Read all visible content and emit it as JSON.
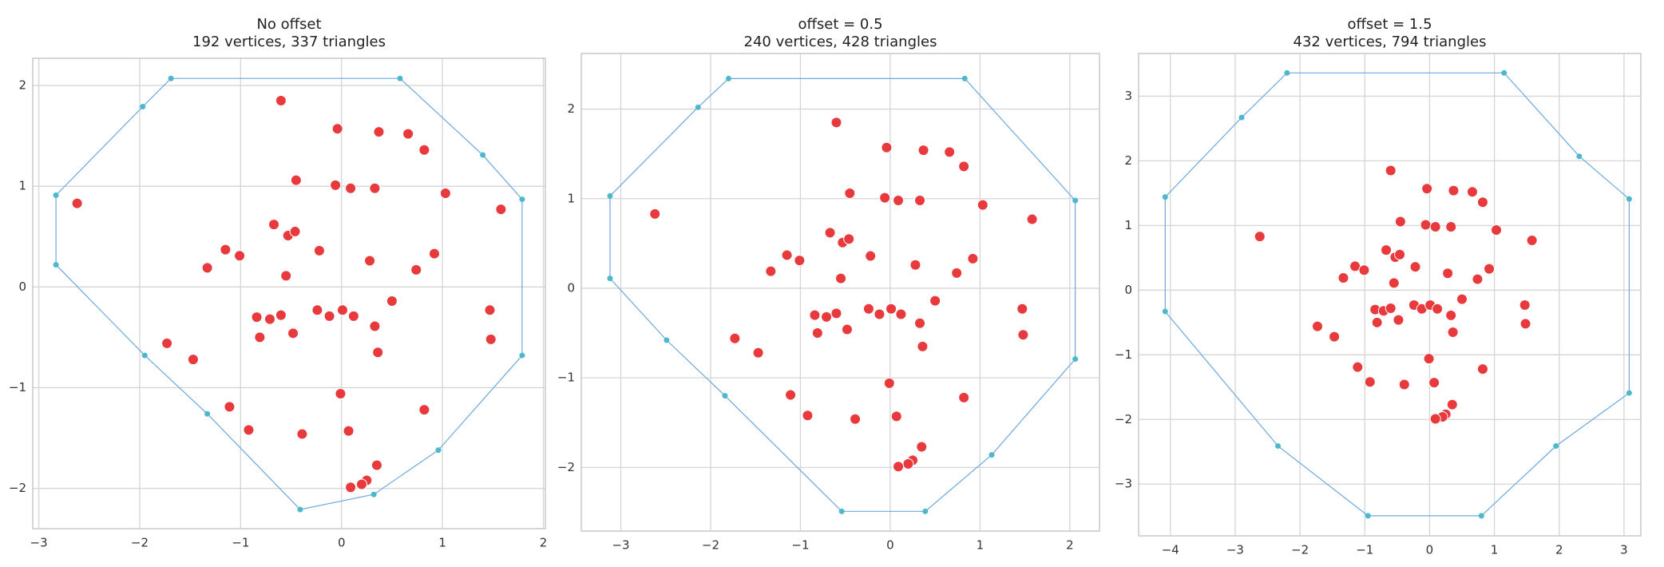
{
  "chart_data": [
    {
      "type": "scatter",
      "title": "No offset",
      "subtitle": "192 vertices, 337 triangles",
      "grid": true,
      "xlim": [
        -3.06,
        2.02
      ],
      "ylim": [
        -2.4,
        2.27
      ],
      "xticks": [
        {
          "value": -3,
          "label": "−3"
        },
        {
          "value": -2,
          "label": "−2"
        },
        {
          "value": -1,
          "label": "−1"
        },
        0,
        1,
        2
      ],
      "yticks": [
        {
          "value": -2,
          "label": "−2"
        },
        {
          "value": -1,
          "label": "−1"
        },
        0,
        1,
        2
      ],
      "series": [
        {
          "color": "#4db8cc",
          "closed": true,
          "x": [
            -1.69,
            0.58,
            1.4,
            1.79,
            1.79,
            0.96,
            0.32,
            -0.41,
            -1.33,
            -1.95,
            -2.83,
            -2.83,
            -1.97
          ],
          "values": [
            2.07,
            2.07,
            1.31,
            0.87,
            -0.68,
            -1.62,
            -2.06,
            -2.21,
            -1.26,
            -0.68,
            0.22,
            0.91,
            1.79
          ]
        },
        {
          "color": "#e8393c",
          "x": [
            -0.6,
            -0.04,
            0.37,
            0.66,
            0.82,
            -0.45,
            -0.06,
            0.09,
            0.33,
            1.03,
            1.58,
            -2.62,
            -0.67,
            -0.53,
            -0.46,
            -1.15,
            -1.01,
            -0.22,
            0.28,
            0.92,
            -1.33,
            0.74,
            -0.55,
            0.5,
            1.47,
            -0.84,
            -0.71,
            -0.6,
            -0.24,
            -0.12,
            0.01,
            0.12,
            0.33,
            -0.48,
            -0.81,
            1.48,
            -1.73,
            0.36,
            -1.47,
            -0.01,
            -1.11,
            0.82,
            -0.92,
            -0.39,
            0.07,
            0.35,
            0.25,
            0.2,
            0.09
          ],
          "values": [
            1.85,
            1.57,
            1.54,
            1.52,
            1.36,
            1.06,
            1.01,
            0.98,
            0.98,
            0.93,
            0.77,
            0.83,
            0.62,
            0.51,
            0.55,
            0.37,
            0.31,
            0.36,
            0.26,
            0.33,
            0.19,
            0.17,
            0.11,
            -0.14,
            -0.23,
            -0.3,
            -0.32,
            -0.28,
            -0.23,
            -0.29,
            -0.23,
            -0.29,
            -0.39,
            -0.46,
            -0.5,
            -0.52,
            -0.56,
            -0.65,
            -0.72,
            -1.06,
            -1.19,
            -1.22,
            -1.42,
            -1.46,
            -1.43,
            -1.77,
            -1.92,
            -1.96,
            -1.99
          ]
        }
      ]
    },
    {
      "type": "scatter",
      "title": "offset = 0.5",
      "subtitle": "240 vertices, 428 triangles",
      "grid": true,
      "xlim": [
        -3.44,
        2.33
      ],
      "ylim": [
        -2.71,
        2.62
      ],
      "xticks": [
        {
          "value": -3,
          "label": "−3"
        },
        {
          "value": -2,
          "label": "−2"
        },
        {
          "value": -1,
          "label": "−1"
        },
        0,
        1,
        2
      ],
      "yticks": [
        {
          "value": -2,
          "label": "−2"
        },
        {
          "value": -1,
          "label": "−1"
        },
        0,
        1,
        2
      ],
      "series": [
        {
          "color": "#4db8cc",
          "closed": true,
          "x": [
            -1.8,
            0.83,
            2.06,
            2.06,
            1.13,
            0.39,
            -0.54,
            -1.84,
            -2.49,
            -3.12,
            -3.12,
            -2.14
          ],
          "values": [
            2.34,
            2.34,
            0.98,
            -0.79,
            -1.86,
            -2.49,
            -2.49,
            -1.2,
            -0.58,
            0.11,
            1.03,
            2.02
          ]
        },
        {
          "color": "#e8393c",
          "x": [
            -0.6,
            -0.04,
            0.37,
            0.66,
            0.82,
            -0.45,
            -0.06,
            0.09,
            0.33,
            1.03,
            1.58,
            -2.62,
            -0.67,
            -0.53,
            -0.46,
            -1.15,
            -1.01,
            -0.22,
            0.28,
            0.92,
            -1.33,
            0.74,
            -0.55,
            0.5,
            1.47,
            -0.84,
            -0.71,
            -0.6,
            -0.24,
            -0.12,
            0.01,
            0.12,
            0.33,
            -0.48,
            -0.81,
            1.48,
            -1.73,
            0.36,
            -1.47,
            -0.01,
            -1.11,
            0.82,
            -0.92,
            -0.39,
            0.07,
            0.35,
            0.25,
            0.2,
            0.09
          ],
          "values": [
            1.85,
            1.57,
            1.54,
            1.52,
            1.36,
            1.06,
            1.01,
            0.98,
            0.98,
            0.93,
            0.77,
            0.83,
            0.62,
            0.51,
            0.55,
            0.37,
            0.31,
            0.36,
            0.26,
            0.33,
            0.19,
            0.17,
            0.11,
            -0.14,
            -0.23,
            -0.3,
            -0.32,
            -0.28,
            -0.23,
            -0.29,
            -0.23,
            -0.29,
            -0.39,
            -0.46,
            -0.5,
            -0.52,
            -0.56,
            -0.65,
            -0.72,
            -1.06,
            -1.19,
            -1.22,
            -1.42,
            -1.46,
            -1.43,
            -1.77,
            -1.92,
            -1.96,
            -1.99
          ]
        }
      ]
    },
    {
      "type": "scatter",
      "title": "offset = 1.5",
      "subtitle": "432 vertices, 794 triangles",
      "grid": true,
      "xlim": [
        -4.49,
        3.26
      ],
      "ylim": [
        -3.8,
        3.66
      ],
      "xticks": [
        {
          "value": -4,
          "label": "−4"
        },
        {
          "value": -3,
          "label": "−3"
        },
        {
          "value": -2,
          "label": "−2"
        },
        {
          "value": -1,
          "label": "−1"
        },
        0,
        1,
        2,
        3
      ],
      "yticks": [
        {
          "value": -3,
          "label": "−3"
        },
        {
          "value": -2,
          "label": "−2"
        },
        {
          "value": -1,
          "label": "−1"
        },
        0,
        1,
        2,
        3
      ],
      "series": [
        {
          "color": "#4db8cc",
          "closed": true,
          "x": [
            -2.2,
            1.15,
            2.31,
            3.08,
            3.08,
            1.95,
            0.8,
            -0.95,
            -2.34,
            -4.08,
            -4.08,
            -2.9
          ],
          "values": [
            3.36,
            3.36,
            2.07,
            1.41,
            -1.59,
            -2.41,
            -3.49,
            -3.49,
            -2.41,
            -0.33,
            1.44,
            2.67
          ]
        },
        {
          "color": "#e8393c",
          "x": [
            -0.6,
            -0.04,
            0.37,
            0.66,
            0.82,
            -0.45,
            -0.06,
            0.09,
            0.33,
            1.03,
            1.58,
            -2.62,
            -0.67,
            -0.53,
            -0.46,
            -1.15,
            -1.01,
            -0.22,
            0.28,
            0.92,
            -1.33,
            0.74,
            -0.55,
            0.5,
            1.47,
            -0.84,
            -0.71,
            -0.6,
            -0.24,
            -0.12,
            0.01,
            0.12,
            0.33,
            -0.48,
            -0.81,
            1.48,
            -1.73,
            0.36,
            -1.47,
            -0.01,
            -1.11,
            0.82,
            -0.92,
            -0.39,
            0.07,
            0.35,
            0.25,
            0.2,
            0.09
          ],
          "values": [
            1.85,
            1.57,
            1.54,
            1.52,
            1.36,
            1.06,
            1.01,
            0.98,
            0.98,
            0.93,
            0.77,
            0.83,
            0.62,
            0.51,
            0.55,
            0.37,
            0.31,
            0.36,
            0.26,
            0.33,
            0.19,
            0.17,
            0.11,
            -0.14,
            -0.23,
            -0.3,
            -0.32,
            -0.28,
            -0.23,
            -0.29,
            -0.23,
            -0.29,
            -0.39,
            -0.46,
            -0.5,
            -0.52,
            -0.56,
            -0.65,
            -0.72,
            -1.06,
            -1.19,
            -1.22,
            -1.42,
            -1.46,
            -1.43,
            -1.77,
            -1.92,
            -1.96,
            -1.99
          ]
        }
      ]
    }
  ]
}
